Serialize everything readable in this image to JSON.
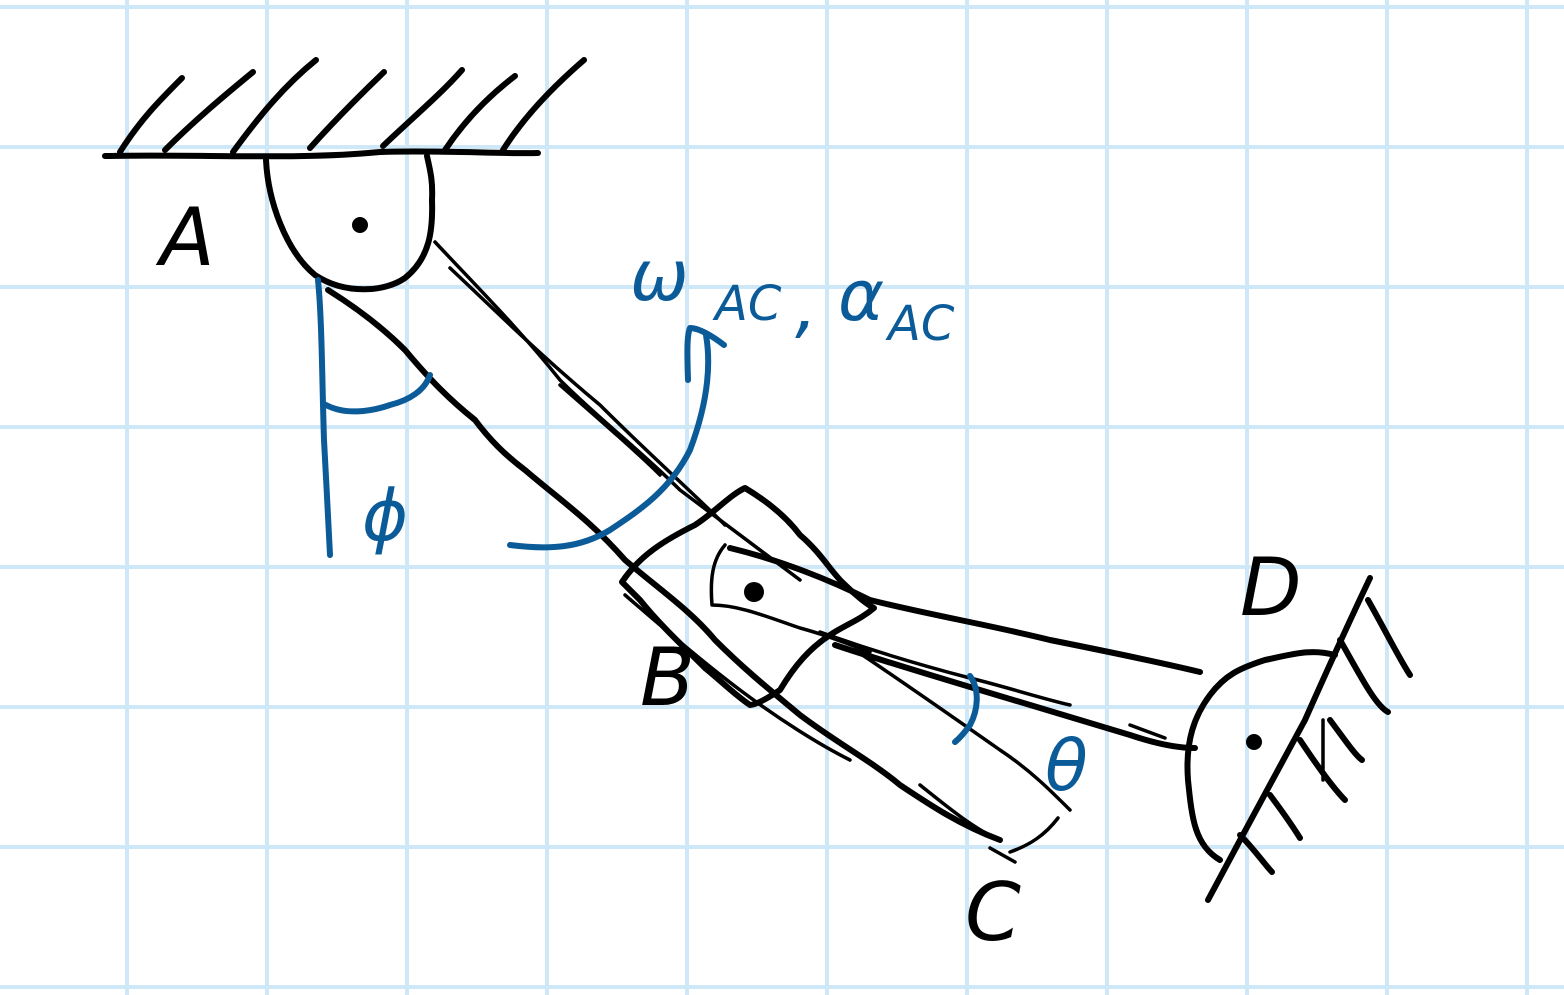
{
  "labels": {
    "point_a": "A",
    "point_b": "B",
    "point_c": "C",
    "point_d": "D",
    "omega": "ω",
    "omega_sub": "AC",
    "comma": ",",
    "alpha": "α",
    "alpha_sub": "AC",
    "phi": "ϕ",
    "theta": "θ"
  },
  "colors": {
    "grid": "#cfe8f7",
    "ink": "#000000",
    "annotation": "#0b5b99"
  }
}
